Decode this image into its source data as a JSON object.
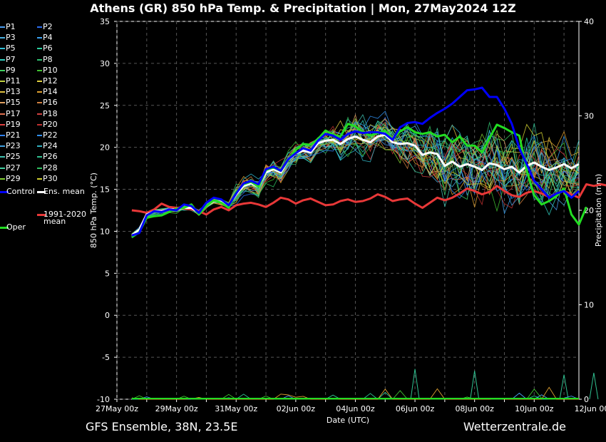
{
  "title": "Athens  (GR)  850 hPa Temp. & Precipitation | Mon, 27May2024 12Z",
  "footer": {
    "left": "GFS Ensemble, 38N, 23.5E",
    "right": "Wetterzentrale.de"
  },
  "colors": {
    "background": "#000000",
    "grid": "#444444",
    "control": "#0000ff",
    "ens_mean": "#ffffff",
    "oper": "#22dd22",
    "climate": "#e83838"
  },
  "legend": [
    {
      "label": "P1",
      "color": "#4a9df0"
    },
    {
      "label": "P2",
      "color": "#2a6df0"
    },
    {
      "label": "P3",
      "color": "#4ab0e0"
    },
    {
      "label": "P4",
      "color": "#3aa0f0"
    },
    {
      "label": "P5",
      "color": "#30c0d8"
    },
    {
      "label": "P6",
      "color": "#2ad0a0"
    },
    {
      "label": "P7",
      "color": "#30d0c0"
    },
    {
      "label": "P8",
      "color": "#30c070"
    },
    {
      "label": "P9",
      "color": "#40d060"
    },
    {
      "label": "P10",
      "color": "#40c030"
    },
    {
      "label": "P11",
      "color": "#c0d040"
    },
    {
      "label": "P12",
      "color": "#e0d040"
    },
    {
      "label": "P13",
      "color": "#e0c040"
    },
    {
      "label": "P14",
      "color": "#e0a030"
    },
    {
      "label": "P15",
      "color": "#e0a060"
    },
    {
      "label": "P16",
      "color": "#d08040"
    },
    {
      "label": "P17",
      "color": "#e07050"
    },
    {
      "label": "P18",
      "color": "#d04040"
    },
    {
      "label": "P19",
      "color": "#e04040"
    },
    {
      "label": "P20",
      "color": "#c03030"
    },
    {
      "label": "P21",
      "color": "#3080f0"
    },
    {
      "label": "P22",
      "color": "#3090f0"
    },
    {
      "label": "P23",
      "color": "#40a0e0"
    },
    {
      "label": "P24",
      "color": "#30b0c0"
    },
    {
      "label": "P25",
      "color": "#40c0b0"
    },
    {
      "label": "P26",
      "color": "#30c090"
    },
    {
      "label": "P27",
      "color": "#40d0a0"
    },
    {
      "label": "P28",
      "color": "#30c060"
    },
    {
      "label": "P29",
      "color": "#80d030"
    },
    {
      "label": "P30",
      "color": "#d0d030"
    },
    {
      "label": "Control",
      "color": "#0000ff",
      "thick": true
    },
    {
      "label": "Ens. mean",
      "color": "#ffffff",
      "thick": true
    },
    {
      "label": "1991-2020\nmean",
      "color": "#e83838",
      "thick": true
    },
    {
      "label": "Oper",
      "color": "#22dd22",
      "thick": true
    }
  ],
  "chart_data": {
    "type": "line",
    "title": "Athens  (GR)  850 hPa Temp. & Precipitation | Mon, 27May2024 12Z",
    "xlabel": "Date (UTC)",
    "ylabel": "850 hPa Temp. (°C)",
    "y2label": "Precipitation (mm)",
    "ylim": [
      -10,
      35
    ],
    "y2lim": [
      0,
      40
    ],
    "yticks": [
      -10,
      -5,
      0,
      5,
      10,
      15,
      20,
      25,
      30,
      35
    ],
    "y2ticks": [
      0,
      10,
      20,
      30,
      40
    ],
    "xticks": [
      "27May 00z",
      "29May 00z",
      "31May 00z",
      "02Jun 00z",
      "04Jun 00z",
      "06Jun 00z",
      "08Jun 00z",
      "10Jun 00z",
      "12Jun 00z"
    ],
    "xlim_hours": [
      0,
      372
    ],
    "x_step_hours": 6,
    "x_start_hour": 12,
    "grid": true,
    "series": [
      {
        "name": "Control",
        "color": "#0000ff",
        "width": 3,
        "values": [
          9.5,
          9.8,
          11.9,
          12.4,
          12.3,
          12.6,
          12.5,
          13.2,
          13.0,
          12.2,
          13.4,
          14.0,
          13.8,
          13.1,
          14.5,
          15.7,
          16.0,
          15.6,
          17.4,
          17.7,
          17.2,
          18.6,
          19.3,
          19.9,
          19.6,
          20.8,
          21.6,
          21.4,
          20.9,
          21.6,
          21.9,
          21.7,
          21.8,
          21.8,
          21.6,
          20.9,
          22.4,
          22.9,
          23.0,
          22.8,
          23.5,
          24.1,
          24.6,
          25.2,
          26.0,
          26.8,
          26.9,
          27.1,
          26.0,
          26.0,
          24.6,
          22.8,
          19.9,
          18.0,
          16.0,
          15.0,
          14.0,
          14.5,
          14.8,
          14.0,
          14.8
        ]
      },
      {
        "name": "Ens. mean",
        "color": "#ffffff",
        "width": 3,
        "values": [
          9.5,
          10.2,
          12.0,
          12.4,
          12.4,
          12.6,
          12.6,
          12.8,
          12.8,
          12.2,
          13.0,
          13.6,
          13.5,
          13.1,
          14.4,
          15.4,
          15.7,
          15.3,
          17.0,
          17.4,
          17.0,
          18.5,
          19.3,
          19.6,
          19.4,
          20.5,
          20.8,
          20.9,
          20.4,
          21.0,
          21.3,
          20.9,
          20.6,
          21.3,
          21.5,
          20.6,
          20.4,
          20.5,
          20.2,
          19.1,
          19.4,
          19.2,
          17.8,
          18.3,
          17.7,
          18.0,
          17.7,
          17.3,
          18.1,
          17.9,
          17.4,
          17.7,
          17.0,
          17.8,
          18.2,
          17.7,
          17.3,
          17.6,
          18.0,
          17.5,
          18.0
        ]
      },
      {
        "name": "1991-2020 mean",
        "color": "#e83838",
        "width": 3,
        "values": [
          12.5,
          12.4,
          12.2,
          12.6,
          13.3,
          12.9,
          12.8,
          12.7,
          12.6,
          12.4,
          12.0,
          12.6,
          12.9,
          12.5,
          13.1,
          13.3,
          13.4,
          13.2,
          12.9,
          13.4,
          14.0,
          13.8,
          13.3,
          13.7,
          13.9,
          13.5,
          13.1,
          13.2,
          13.6,
          13.8,
          13.5,
          13.6,
          13.9,
          14.4,
          14.1,
          13.6,
          13.8,
          13.9,
          13.3,
          12.8,
          13.4,
          14.0,
          13.7,
          14.0,
          14.5,
          15.1,
          14.8,
          14.4,
          14.7,
          15.4,
          14.8,
          14.3,
          14.1,
          14.6,
          14.8,
          14.5,
          14.1,
          14.5,
          14.8,
          14.4,
          14.0,
          15.6,
          15.4,
          15.6,
          15.4
        ]
      },
      {
        "name": "Oper",
        "color": "#22dd22",
        "width": 3,
        "values": [
          9.3,
          9.9,
          11.6,
          11.8,
          11.9,
          12.3,
          12.7,
          12.8,
          13.2,
          12.0,
          13.0,
          13.7,
          13.4,
          12.8,
          14.7,
          15.6,
          15.9,
          15.3,
          17.3,
          17.6,
          17.2,
          18.5,
          19.7,
          20.4,
          20.3,
          21.0,
          22.0,
          21.5,
          21.3,
          22.8,
          22.5,
          21.8,
          21.4,
          21.7,
          22.0,
          21.0,
          21.9,
          22.4,
          21.8,
          21.6,
          21.8,
          21.3,
          21.5,
          20.6,
          21.3,
          20.2,
          20.2,
          19.4,
          21.1,
          22.7,
          22.3,
          21.8,
          21.4,
          17.2,
          14.3,
          13.2,
          13.6,
          14.2,
          15.1,
          12.0,
          10.8,
          12.9
        ]
      }
    ],
    "precip_peaks_mm": [
      {
        "date": "06Jun 00z",
        "mm": 3.2
      },
      {
        "date": "08Jun 00z",
        "mm": 3.0
      },
      {
        "date": "11Jun 00z",
        "mm": 2.6
      },
      {
        "date": "12Jun 00z",
        "mm": 2.8
      }
    ]
  }
}
